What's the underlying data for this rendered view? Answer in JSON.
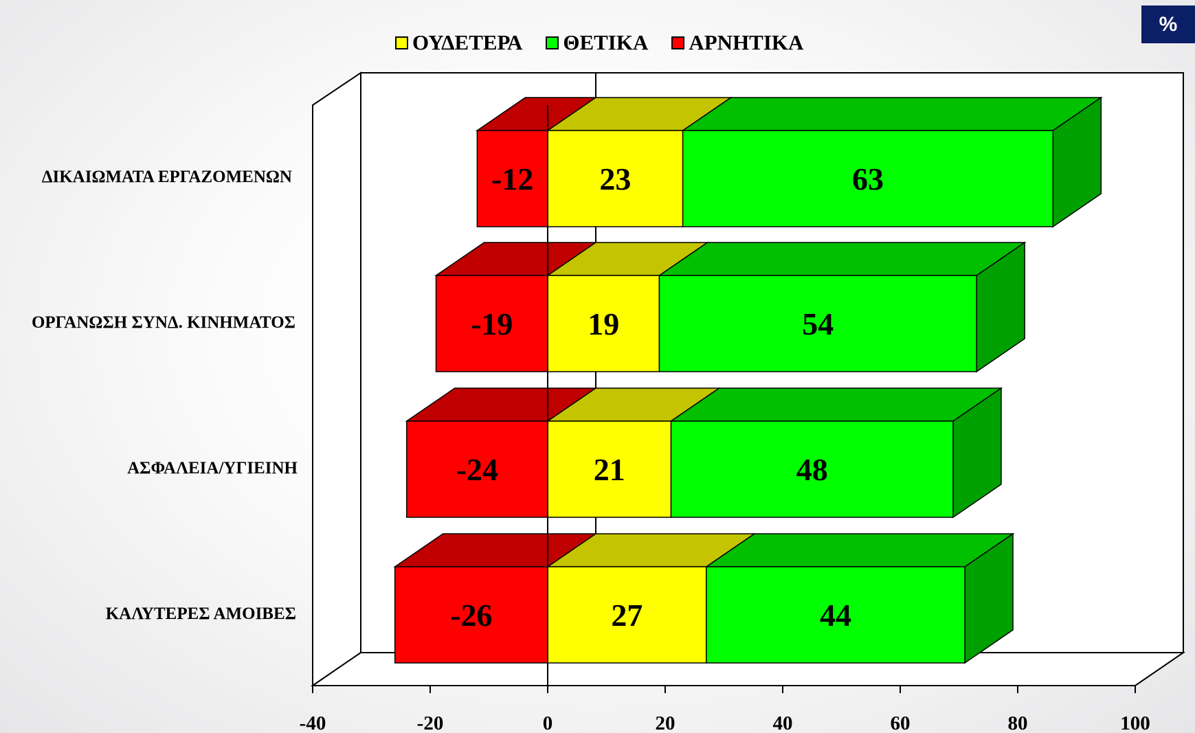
{
  "badge": "%",
  "chart_data": {
    "type": "bar",
    "stacked": true,
    "orientation": "horizontal",
    "categories": [
      "ΔΙΚΑΙΩΜΑΤΑ ΕΡΓΑΖΟΜΕΝΩΝ",
      "ΟΡΓΑΝΩΣΗ ΣΥΝΔ. ΚΙΝΗΜΑΤΟΣ",
      "ΑΣΦΑΛΕΙΑ/ΥΓΙΕΙΝΗ",
      "ΚΑΛΥΤΕΡΕΣ ΑΜΟΙΒΕΣ"
    ],
    "series": [
      {
        "name": "ΑΡΝΗΤΙΚΑ",
        "color": "#ff0000",
        "values": [
          -12,
          -19,
          -24,
          -26
        ]
      },
      {
        "name": "ΟΥΔΕΤΕΡΑ",
        "color": "#ffff00",
        "values": [
          23,
          19,
          21,
          27
        ]
      },
      {
        "name": "ΘΕΤΙΚΑ",
        "color": "#00ff00",
        "values": [
          63,
          54,
          48,
          44
        ]
      }
    ],
    "legend_order": [
      "ΟΥΔΕΤΕΡΑ",
      "ΘΕΤΙΚΑ",
      "ΑΡΝΗΤΙΚΑ"
    ],
    "xlim": [
      -40,
      100
    ],
    "xticks": [
      "-40",
      "-20",
      "0",
      "20",
      "40",
      "60",
      "80",
      "100"
    ],
    "grid": false,
    "legend_position": "top"
  }
}
